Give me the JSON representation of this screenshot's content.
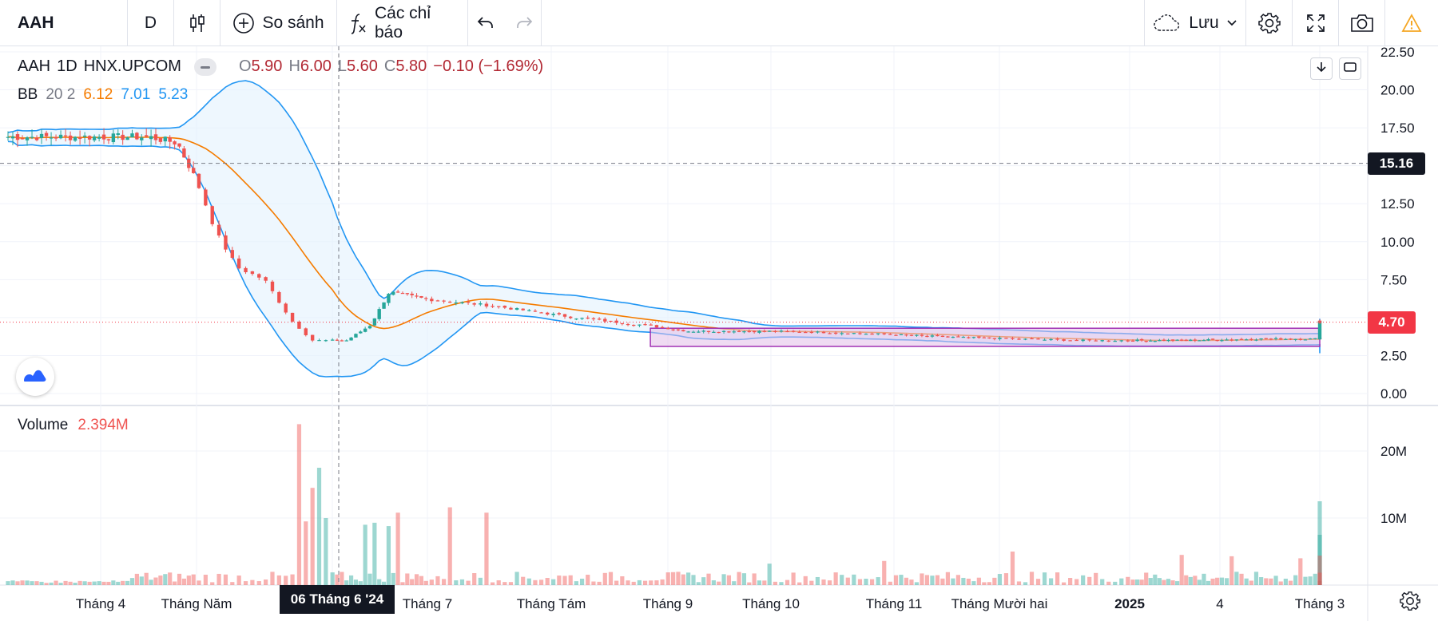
{
  "toolbar": {
    "symbol": "AAH",
    "interval": "D",
    "compare_label": "So sánh",
    "indicators_label": "Các chỉ báo",
    "save_label": "Lưu",
    "icons": [
      "candles-icon",
      "plus-circle-icon",
      "fx-icon",
      "undo-icon",
      "redo-icon",
      "cloud-icon",
      "chevron-down-icon",
      "gear-icon",
      "fullscreen-icon",
      "camera-icon",
      "warning-icon"
    ]
  },
  "legend": {
    "symbol": "AAH",
    "interval": "1D",
    "exchange": "HNX.UPCOM",
    "open_label": "O",
    "open": "5.90",
    "high_label": "H",
    "high": "6.00",
    "low_label": "L",
    "low": "5.60",
    "close_label": "C",
    "close": "5.80",
    "change": "−0.10 (−1.69%)"
  },
  "bb_legend": {
    "name": "BB",
    "params": "20 2",
    "basis": "6.12",
    "upper": "7.01",
    "lower": "5.23"
  },
  "volume_legend": {
    "name": "Volume",
    "value": "2.394M"
  },
  "crosshair": {
    "date_label": "06 Tháng 6 '24",
    "price_label": "15.16"
  },
  "last_price_label": "4.70",
  "colors": {
    "up": "#26a69a",
    "down": "#ef5350",
    "bb_basis": "#f57c00",
    "bb_band": "#2196f3",
    "bb_fill": "#e3f2fd",
    "rect_border": "#9c27b0",
    "rect_fill": "#e1bee7",
    "last_price": "#f23645",
    "crosshair_badge": "#131722"
  },
  "chart_data": {
    "type": "candlestick",
    "price_axis": {
      "min": 0,
      "max": 22.5,
      "ticks": [
        "0.00",
        "2.50",
        "5.00",
        "7.50",
        "10.00",
        "12.50",
        "15.00",
        "17.50",
        "20.00",
        "22.50"
      ]
    },
    "volume_axis": {
      "ticks": [
        "10M",
        "20M"
      ]
    },
    "x_tick_labels": [
      "Tháng 4",
      "Tháng Năm",
      "Tháng 6",
      "Tháng 7",
      "Tháng Tám",
      "Tháng 9",
      "Tháng 10",
      "Tháng 11",
      "Tháng Mười hai",
      "2025",
      "4",
      "Tháng 3"
    ],
    "close_profile": [
      {
        "m": 0,
        "c": 16.9
      },
      {
        "m": 0.5,
        "c": 16.9
      },
      {
        "m": 0.8,
        "c": 16.5
      },
      {
        "m": 1.0,
        "c": 14.0
      },
      {
        "m": 1.15,
        "c": 10.5
      },
      {
        "m": 1.3,
        "c": 8.3
      },
      {
        "m": 1.5,
        "c": 7.5
      },
      {
        "m": 1.7,
        "c": 4.8
      },
      {
        "m": 1.85,
        "c": 3.5
      },
      {
        "m": 2.15,
        "c": 3.5
      },
      {
        "m": 2.4,
        "c": 4.5
      },
      {
        "m": 2.6,
        "c": 6.7
      },
      {
        "m": 3.0,
        "c": 6.2
      },
      {
        "m": 3.5,
        "c": 5.8
      },
      {
        "m": 4.2,
        "c": 5.0
      },
      {
        "m": 4.8,
        "c": 4.5
      },
      {
        "m": 5.2,
        "c": 4.1
      },
      {
        "m": 6.0,
        "c": 4.1
      },
      {
        "m": 6.6,
        "c": 4.0
      },
      {
        "m": 7.6,
        "c": 3.7
      },
      {
        "m": 8.6,
        "c": 3.5
      },
      {
        "m": 9.6,
        "c": 3.5
      },
      {
        "m": 10.4,
        "c": 3.6
      },
      {
        "m": 11.0,
        "c": 3.6
      },
      {
        "m": 11.1,
        "c": 4.8
      },
      {
        "m": 11.2,
        "c": 4.7
      }
    ],
    "volume_spikes": [
      {
        "m": 1.75,
        "v": 24
      },
      {
        "m": 1.8,
        "v": 9.5
      },
      {
        "m": 1.85,
        "v": 14.5
      },
      {
        "m": 1.9,
        "v": 17.5
      },
      {
        "m": 1.95,
        "v": 10
      },
      {
        "m": 2.35,
        "v": 9
      },
      {
        "m": 2.45,
        "v": 9.3
      },
      {
        "m": 2.6,
        "v": 8.8
      },
      {
        "m": 2.7,
        "v": 10.8
      },
      {
        "m": 3.2,
        "v": 11.6
      },
      {
        "m": 3.5,
        "v": 10.8
      },
      {
        "m": 6.0,
        "v": 3.2
      },
      {
        "m": 6.9,
        "v": 3.6
      },
      {
        "m": 8.1,
        "v": 5
      },
      {
        "m": 9.6,
        "v": 4.5
      },
      {
        "m": 10.1,
        "v": 4.3
      },
      {
        "m": 10.8,
        "v": 4
      },
      {
        "m": 11.05,
        "v": 7.5
      },
      {
        "m": 11.1,
        "v": 12.5
      },
      {
        "m": 11.15,
        "v": 4.4
      }
    ],
    "rectangle": {
      "from_month": 4.85,
      "to_month": 11.3,
      "price_top": 4.3,
      "price_bottom": 3.1
    }
  }
}
